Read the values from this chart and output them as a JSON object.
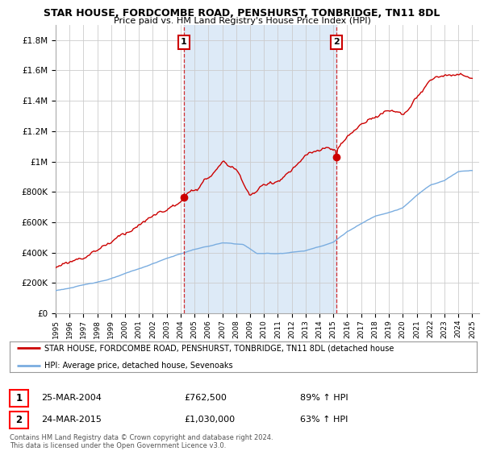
{
  "title": "STAR HOUSE, FORDCOMBE ROAD, PENSHURST, TONBRIDGE, TN11 8DL",
  "subtitle": "Price paid vs. HM Land Registry's House Price Index (HPI)",
  "ylabel_ticks": [
    "£0",
    "£200K",
    "£400K",
    "£600K",
    "£800K",
    "£1M",
    "£1.2M",
    "£1.4M",
    "£1.6M",
    "£1.8M"
  ],
  "ytick_values": [
    0,
    200000,
    400000,
    600000,
    800000,
    1000000,
    1200000,
    1400000,
    1600000,
    1800000
  ],
  "ylim": [
    0,
    1900000
  ],
  "xlim_start": 1995.0,
  "xlim_end": 2025.5,
  "sale1_x": 2004.23,
  "sale1_y": 762500,
  "sale1_label": "1",
  "sale1_date": "25-MAR-2004",
  "sale1_price": "£762,500",
  "sale1_hpi": "89% ↑ HPI",
  "sale2_x": 2015.23,
  "sale2_y": 1030000,
  "sale2_label": "2",
  "sale2_date": "24-MAR-2015",
  "sale2_price": "£1,030,000",
  "sale2_hpi": "63% ↑ HPI",
  "legend_line1": "STAR HOUSE, FORDCOMBE ROAD, PENSHURST, TONBRIDGE, TN11 8DL (detached house",
  "legend_line2": "HPI: Average price, detached house, Sevenoaks",
  "footer1": "Contains HM Land Registry data © Crown copyright and database right 2024.",
  "footer2": "This data is licensed under the Open Government Licence v3.0.",
  "hpi_color": "#7aade0",
  "shade_color": "#ddeaf7",
  "price_color": "#cc0000",
  "background_color": "#ffffff",
  "grid_color": "#cccccc"
}
